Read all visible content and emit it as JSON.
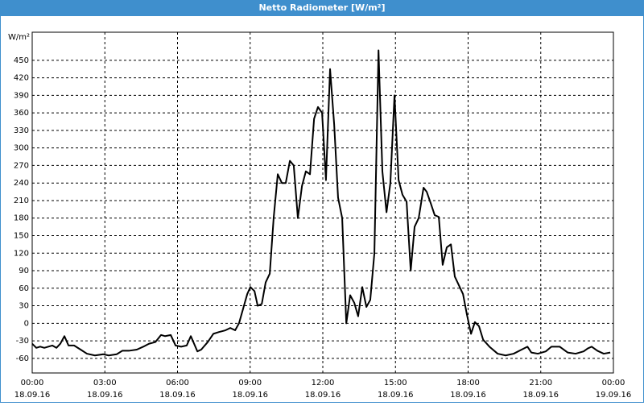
{
  "chart_data": {
    "type": "line",
    "title": "Netto Radiometer [W/m²]",
    "y_label": "W/m²",
    "x": [
      0,
      0.17,
      0.33,
      0.5,
      0.67,
      0.83,
      1.0,
      1.16,
      1.33,
      1.5,
      1.73,
      2.0,
      2.26,
      2.59,
      2.93,
      3.16,
      3.49,
      3.72,
      3.99,
      4.32,
      4.59,
      4.82,
      5.09,
      5.32,
      5.49,
      5.72,
      5.92,
      6.15,
      6.38,
      6.55,
      6.82,
      6.98,
      7.25,
      7.48,
      7.71,
      7.98,
      8.18,
      8.38,
      8.54,
      8.71,
      8.88,
      9.01,
      9.18,
      9.31,
      9.48,
      9.64,
      9.81,
      9.97,
      10.14,
      10.31,
      10.47,
      10.64,
      10.8,
      10.97,
      11.14,
      11.3,
      11.47,
      11.64,
      11.8,
      11.97,
      12.13,
      12.3,
      12.47,
      12.63,
      12.8,
      12.97,
      13.13,
      13.3,
      13.46,
      13.63,
      13.8,
      13.96,
      14.13,
      14.3,
      14.46,
      14.63,
      14.79,
      14.96,
      15.13,
      15.29,
      15.46,
      15.63,
      15.79,
      15.96,
      16.16,
      16.29,
      16.46,
      16.62,
      16.79,
      16.95,
      17.12,
      17.29,
      17.45,
      17.62,
      17.79,
      17.95,
      18.12,
      18.28,
      18.45,
      18.62,
      18.88,
      19.22,
      19.55,
      19.88,
      20.21,
      20.45,
      20.61,
      20.88,
      21.21,
      21.44,
      21.78,
      22.11,
      22.44,
      22.77,
      22.94,
      23.1,
      23.34,
      23.6,
      23.87
    ],
    "series": [
      {
        "name": "Netto Radiometer",
        "color": "#000000",
        "values": [
          -35,
          -42,
          -40,
          -42,
          -40,
          -38,
          -42,
          -35,
          -22,
          -38,
          -38,
          -45,
          -52,
          -55,
          -53,
          -55,
          -53,
          -47,
          -47,
          -45,
          -40,
          -35,
          -32,
          -20,
          -22,
          -20,
          -38,
          -40,
          -38,
          -22,
          -48,
          -45,
          -32,
          -18,
          -15,
          -12,
          -8,
          -12,
          0,
          25,
          50,
          62,
          55,
          30,
          33,
          70,
          85,
          180,
          255,
          240,
          240,
          278,
          270,
          180,
          235,
          260,
          255,
          350,
          370,
          360,
          245,
          435,
          340,
          215,
          180,
          0,
          48,
          35,
          12,
          62,
          28,
          40,
          120,
          467,
          260,
          190,
          240,
          390,
          245,
          220,
          208,
          90,
          165,
          180,
          232,
          225,
          205,
          185,
          182,
          100,
          130,
          135,
          80,
          65,
          50,
          15,
          -18,
          2,
          -5,
          -28,
          -40,
          -52,
          -55,
          -52,
          -45,
          -40,
          -50,
          -52,
          -48,
          -40,
          -40,
          -50,
          -52,
          -48,
          -43,
          -40,
          -47,
          -52,
          -50
        ]
      }
    ],
    "xlim": [
      0,
      24
    ],
    "xticks": [
      {
        "value": 0,
        "label": "00:00"
      },
      {
        "value": 3,
        "label": "03:00"
      },
      {
        "value": 6,
        "label": "06:00"
      },
      {
        "value": 9,
        "label": "09:00"
      },
      {
        "value": 12,
        "label": "12:00"
      },
      {
        "value": 15,
        "label": "15:00"
      },
      {
        "value": 18,
        "label": "18:00"
      },
      {
        "value": 21,
        "label": "21:00"
      },
      {
        "value": 24,
        "label": "00:00"
      }
    ],
    "xtick_dates": [
      "18.09.16",
      "18.09.16",
      "18.09.16",
      "18.09.16",
      "18.09.16",
      "18.09.16",
      "18.09.16",
      "18.09.16",
      "19.09.16"
    ],
    "ylim": [
      -85,
      498
    ],
    "yticks": [
      -60,
      -30,
      0,
      30,
      60,
      90,
      120,
      150,
      180,
      210,
      240,
      270,
      300,
      330,
      360,
      390,
      420,
      450
    ],
    "grid": true
  }
}
